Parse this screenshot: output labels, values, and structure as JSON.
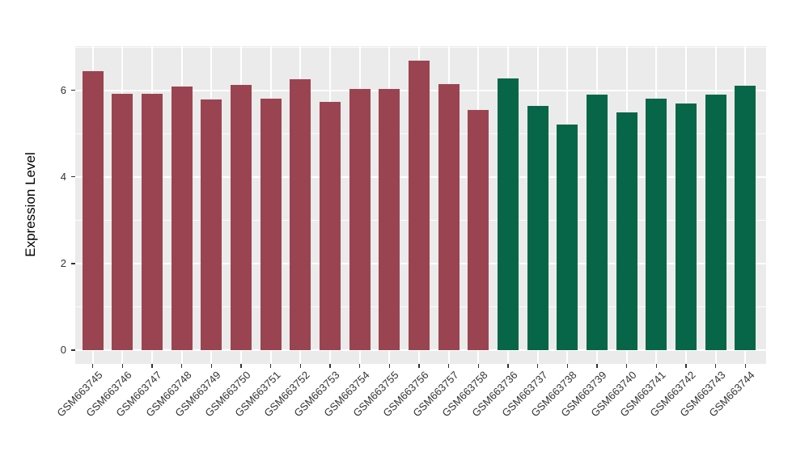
{
  "chart_data": {
    "type": "bar",
    "title": "",
    "xlabel": "",
    "ylabel": "Expression Level",
    "categories": [
      "GSM663745",
      "GSM663746",
      "GSM663747",
      "GSM663748",
      "GSM663749",
      "GSM663750",
      "GSM663751",
      "GSM663752",
      "GSM663753",
      "GSM663754",
      "GSM663755",
      "GSM663756",
      "GSM663757",
      "GSM663758",
      "GSM663736",
      "GSM663737",
      "GSM663738",
      "GSM663739",
      "GSM663740",
      "GSM663741",
      "GSM663742",
      "GSM663743",
      "GSM663744"
    ],
    "values": [
      6.44,
      5.92,
      5.92,
      6.08,
      5.78,
      6.13,
      5.81,
      6.25,
      5.73,
      6.03,
      6.03,
      6.68,
      6.14,
      5.54,
      6.28,
      5.63,
      5.2,
      5.9,
      5.49,
      5.8,
      5.69,
      5.9,
      6.1
    ],
    "color_groups": [
      {
        "color": "#9B4451",
        "count": 14
      },
      {
        "color": "#066647",
        "count": 9
      }
    ],
    "y_ticks": [
      0,
      2,
      4,
      6
    ],
    "y_minor_gridlines": [
      1,
      3,
      5,
      7
    ],
    "ylim": [
      -0.32,
      7.02
    ],
    "grid": true,
    "legend": "none",
    "panel_background": "#EBEBEB",
    "gridline_color": "#FFFFFF",
    "tick_label_color": "#333333",
    "axis_title_color": "#000000"
  }
}
